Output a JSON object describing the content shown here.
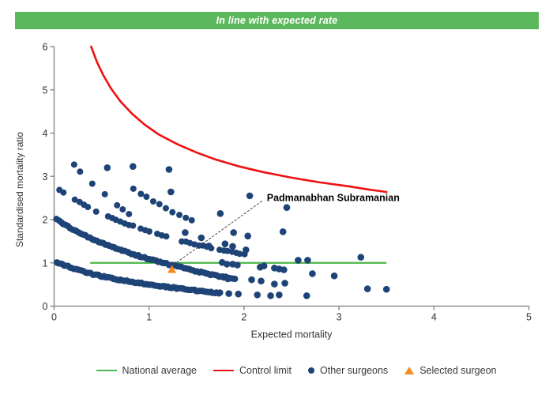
{
  "banner": {
    "title": "In line with expected rate"
  },
  "colors": {
    "banner_bg": "#5cb85c",
    "banner_text": "#ffffff",
    "national_average": "#4cb648",
    "control_limit": "#ee1111",
    "surgeon_dot": "#1e4376",
    "selected_surgeon": "#f68b1f",
    "axis": "#8e8e8e",
    "axis_text": "#333333",
    "annotation_line": "#444444",
    "annotation_text": "#000000"
  },
  "legend": {
    "items": [
      {
        "type": "line",
        "color_key": "national_average",
        "label": "National average"
      },
      {
        "type": "line",
        "color_key": "control_limit",
        "label": "Control limit"
      },
      {
        "type": "dot",
        "color_key": "surgeon_dot",
        "label": "Other surgeons"
      },
      {
        "type": "triangle",
        "color_key": "selected_surgeon",
        "label": "Selected surgeon"
      }
    ]
  },
  "chart_data": {
    "type": "scatter",
    "title": "In line with expected rate",
    "xlabel": "Expected mortality",
    "ylabel": "Standardised mortality ratio",
    "xlim": [
      0,
      5
    ],
    "ylim": [
      0,
      6
    ],
    "x_ticks": [
      0,
      1,
      2,
      3,
      4,
      5
    ],
    "y_ticks": [
      0,
      1,
      2,
      3,
      4,
      5,
      6
    ],
    "grid": false,
    "legend_position": "bottom",
    "national_average": {
      "y": 1.0,
      "x_start": 0.38,
      "x_end": 3.5
    },
    "control_limit": {
      "points": [
        [
          0.39,
          6.0
        ],
        [
          0.45,
          5.65
        ],
        [
          0.52,
          5.33
        ],
        [
          0.6,
          5.03
        ],
        [
          0.7,
          4.73
        ],
        [
          0.82,
          4.45
        ],
        [
          0.95,
          4.2
        ],
        [
          1.1,
          3.97
        ],
        [
          1.3,
          3.74
        ],
        [
          1.5,
          3.55
        ],
        [
          1.7,
          3.39
        ],
        [
          1.95,
          3.23
        ],
        [
          2.2,
          3.1
        ],
        [
          2.5,
          2.97
        ],
        [
          2.8,
          2.86
        ],
        [
          3.1,
          2.77
        ],
        [
          3.3,
          2.7
        ],
        [
          3.5,
          2.64
        ]
      ]
    },
    "selected_surgeon": {
      "x": 1.24,
      "y": 0.85,
      "label": "Padmanabhan Subramanian"
    },
    "annotation": {
      "text_x": 2.24,
      "text_y": 2.5,
      "line_from_x": 2.19,
      "line_from_y": 2.43,
      "line_to_x": 1.24,
      "line_to_y": 0.93
    },
    "surgeon_bands": [
      {
        "name": "band-1",
        "n": 88,
        "gap": 0,
        "r": 4.1,
        "anchors": [
          [
            0.03,
            1.0
          ],
          [
            0.2,
            0.88
          ],
          [
            0.4,
            0.74
          ],
          [
            0.6,
            0.645
          ],
          [
            0.8,
            0.565
          ],
          [
            1.0,
            0.5
          ],
          [
            1.2,
            0.44
          ],
          [
            1.4,
            0.385
          ],
          [
            1.6,
            0.335
          ],
          [
            1.75,
            0.305
          ]
        ]
      },
      {
        "name": "band-2",
        "n": 82,
        "gap": 0,
        "r": 4.1,
        "anchors": [
          [
            0.03,
            2.0
          ],
          [
            0.2,
            1.76
          ],
          [
            0.4,
            1.55
          ],
          [
            0.6,
            1.38
          ],
          [
            0.8,
            1.22
          ],
          [
            1.0,
            1.09
          ],
          [
            1.2,
            0.97
          ],
          [
            1.4,
            0.86
          ],
          [
            1.6,
            0.755
          ],
          [
            1.75,
            0.69
          ],
          [
            1.9,
            0.625
          ]
        ]
      },
      {
        "name": "band-3",
        "n": 46,
        "gap": 0.3,
        "r": 4.0,
        "anchors": [
          [
            0.05,
            2.68
          ],
          [
            0.25,
            2.42
          ],
          [
            0.45,
            2.19
          ],
          [
            0.65,
            1.99
          ],
          [
            0.85,
            1.83
          ],
          [
            1.05,
            1.69
          ],
          [
            1.25,
            1.56
          ],
          [
            1.45,
            1.45
          ],
          [
            1.65,
            1.35
          ],
          [
            1.85,
            1.26
          ],
          [
            2.0,
            1.2
          ]
        ]
      },
      {
        "name": "band-4",
        "n": 10,
        "gap": 0.1,
        "r": 4.0,
        "anchors": [
          [
            0.84,
            2.71
          ],
          [
            0.99,
            2.49
          ],
          [
            1.12,
            2.33
          ],
          [
            1.28,
            2.14
          ],
          [
            1.45,
            1.98
          ]
        ]
      },
      {
        "name": "band-5",
        "n": 10,
        "gap": 0.1,
        "r": 4.0,
        "anchors": [
          [
            0.21,
            3.27
          ],
          [
            0.29,
            3.08
          ],
          [
            0.37,
            2.9
          ],
          [
            0.46,
            2.72
          ],
          [
            0.56,
            2.55
          ],
          [
            0.67,
            2.33
          ],
          [
            0.79,
            2.13
          ]
        ]
      }
    ],
    "surgeon_points": [
      [
        0.56,
        3.2
      ],
      [
        0.83,
        3.23
      ],
      [
        1.21,
        3.16
      ],
      [
        1.23,
        2.64
      ],
      [
        2.06,
        2.55
      ],
      [
        2.45,
        2.28
      ],
      [
        1.75,
        2.14
      ],
      [
        1.89,
        1.7
      ],
      [
        2.04,
        1.62
      ],
      [
        2.41,
        1.72
      ],
      [
        1.38,
        1.7
      ],
      [
        1.55,
        1.58
      ],
      [
        1.63,
        1.39
      ],
      [
        1.8,
        1.44
      ],
      [
        1.88,
        1.38
      ],
      [
        2.02,
        1.3
      ],
      [
        1.77,
        1.01
      ],
      [
        1.82,
        0.97
      ],
      [
        1.88,
        0.97
      ],
      [
        1.93,
        0.95
      ],
      [
        2.17,
        0.9
      ],
      [
        2.21,
        0.93
      ],
      [
        2.32,
        0.88
      ],
      [
        2.37,
        0.86
      ],
      [
        2.42,
        0.84
      ],
      [
        2.57,
        1.06
      ],
      [
        2.67,
        1.06
      ],
      [
        2.72,
        0.75
      ],
      [
        2.95,
        0.7
      ],
      [
        3.23,
        1.13
      ],
      [
        1.78,
        0.68
      ],
      [
        1.83,
        0.63
      ],
      [
        2.08,
        0.61
      ],
      [
        2.18,
        0.58
      ],
      [
        2.32,
        0.51
      ],
      [
        2.43,
        0.53
      ],
      [
        1.84,
        0.29
      ],
      [
        1.94,
        0.28
      ],
      [
        2.14,
        0.26
      ],
      [
        2.28,
        0.24
      ],
      [
        2.37,
        0.26
      ],
      [
        2.66,
        0.24
      ],
      [
        3.3,
        0.4
      ],
      [
        3.5,
        0.39
      ]
    ]
  }
}
